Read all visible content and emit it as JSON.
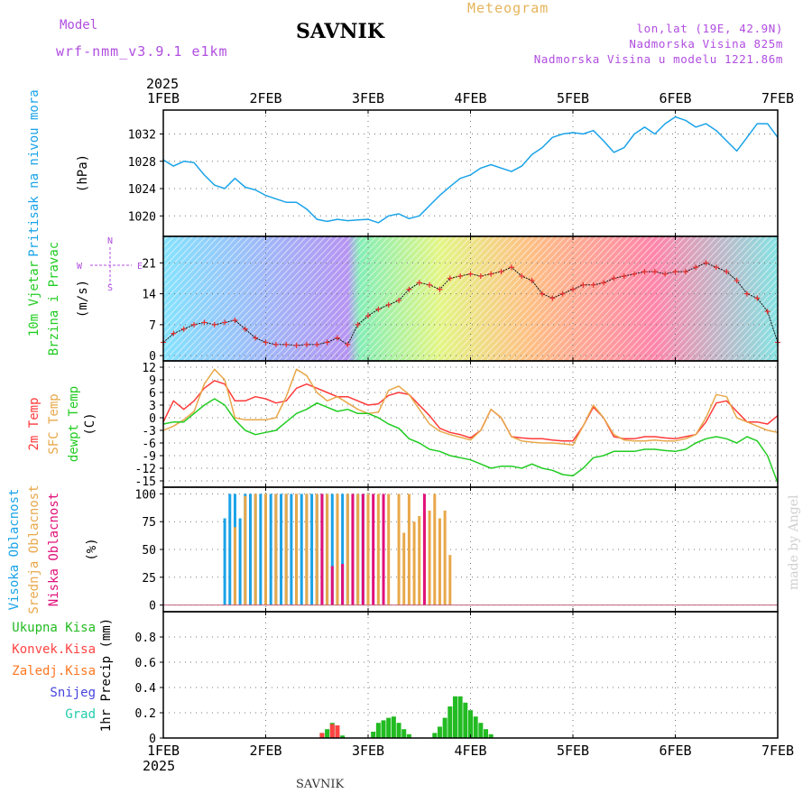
{
  "header": {
    "model_label": "Model",
    "model_version": "wrf-nmm_v3.9.1  e1km",
    "station": "SAVNIK",
    "meteogram_label": "Meteogram",
    "location": "lon,lat (19E, 42.9N)",
    "elevation": "Nadmorska Visina 825m",
    "model_elevation": "Nadmorska Visina u modelu 1221.86m"
  },
  "footer": {
    "station": "SAVNIK"
  },
  "watermark": "made by Angel",
  "colors": {
    "pressure": "#1aa3e8",
    "temp2m": "#ff3a3a",
    "sfc_temp": "#e8a84a",
    "dewpoint": "#22cc22",
    "high_cloud": "#1aa3e8",
    "mid_cloud": "#e8a84a",
    "low_cloud": "#e0107a",
    "total_precip": "#22bb22",
    "conv_precip": "#ff4444",
    "snow": "#4444dd",
    "wind_label": "#22cc22",
    "cloud_label": "#1aa3e8",
    "panel_border": "#000000"
  },
  "chart_data": [
    {
      "type": "line",
      "panel": "pressure",
      "ylabel": [
        "Pritisak na nivou mora",
        "(hPa)"
      ],
      "ylim": [
        1017,
        1035.5
      ],
      "yticks": [
        1020,
        1024,
        1028,
        1032
      ],
      "top_axis_year": "2025",
      "x_ticks": [
        "1FEB",
        "2FEB",
        "3FEB",
        "4FEB",
        "5FEB",
        "6FEB",
        "7FEB"
      ],
      "grid": true,
      "series": [
        {
          "color_key": "pressure",
          "x": [
            0,
            0.1,
            0.2,
            0.3,
            0.4,
            0.5,
            0.6,
            0.7,
            0.8,
            0.9,
            1.0,
            1.1,
            1.2,
            1.3,
            1.4,
            1.5,
            1.6,
            1.7,
            1.8,
            1.9,
            2.0,
            2.1,
            2.2,
            2.3,
            2.4,
            2.5,
            2.6,
            2.7,
            2.8,
            2.9,
            3.0,
            3.1,
            3.2,
            3.3,
            3.4,
            3.5,
            3.6,
            3.7,
            3.8,
            3.9,
            4.0,
            4.1,
            4.2,
            4.3,
            4.4,
            4.5,
            4.6,
            4.7,
            4.8,
            4.9,
            5.0,
            5.1,
            5.2,
            5.3,
            5.4,
            5.5,
            5.6,
            5.7,
            5.8,
            5.9,
            6.0
          ],
          "y": [
            1028.2,
            1027.3,
            1028.0,
            1027.8,
            1026.0,
            1024.5,
            1024.0,
            1025.5,
            1024.2,
            1023.8,
            1023.0,
            1022.5,
            1022.0,
            1022.0,
            1021.0,
            1019.5,
            1019.2,
            1019.5,
            1019.3,
            1019.4,
            1019.5,
            1019.0,
            1020.0,
            1020.3,
            1019.6,
            1020.0,
            1021.5,
            1023.0,
            1024.3,
            1025.5,
            1026.0,
            1027.0,
            1027.5,
            1027.0,
            1026.5,
            1027.3,
            1029.0,
            1030.0,
            1031.5,
            1032.0,
            1032.2,
            1032.0,
            1032.5,
            1031.0,
            1029.3,
            1030.0,
            1032.0,
            1033.0,
            1032.0,
            1033.5,
            1034.5,
            1034.0,
            1033.0,
            1033.5,
            1032.5,
            1031.0,
            1029.5,
            1031.5,
            1033.5,
            1033.5,
            1031.5
          ]
        }
      ]
    },
    {
      "type": "line",
      "panel": "wind",
      "ylabel": [
        "10m Vjetar",
        "Brzina i Pravac",
        "(m/s)"
      ],
      "compass": [
        "N",
        "S",
        "W",
        "E"
      ],
      "ylim": [
        -1.2,
        27
      ],
      "yticks": [
        0,
        7,
        14,
        21
      ],
      "x_ticks": [
        "1FEB",
        "2FEB",
        "3FEB",
        "4FEB",
        "5FEB",
        "6FEB",
        "7FEB"
      ],
      "grid": true,
      "series": [
        {
          "name": "speed",
          "x": [
            0,
            0.1,
            0.2,
            0.3,
            0.4,
            0.5,
            0.6,
            0.7,
            0.8,
            0.9,
            1.0,
            1.1,
            1.2,
            1.3,
            1.4,
            1.5,
            1.6,
            1.7,
            1.8,
            1.9,
            2.0,
            2.1,
            2.2,
            2.3,
            2.4,
            2.5,
            2.6,
            2.7,
            2.8,
            2.9,
            3.0,
            3.1,
            3.2,
            3.3,
            3.4,
            3.5,
            3.6,
            3.7,
            3.8,
            3.9,
            4.0,
            4.1,
            4.2,
            4.3,
            4.4,
            4.5,
            4.6,
            4.7,
            4.8,
            4.9,
            5.0,
            5.1,
            5.2,
            5.3,
            5.4,
            5.5,
            5.6,
            5.7,
            5.8,
            5.9,
            6.0
          ],
          "y": [
            3,
            5,
            6,
            7,
            7.5,
            7,
            7.5,
            8,
            6,
            4,
            3,
            2.5,
            2.5,
            2.3,
            2.5,
            2.5,
            3,
            4,
            2.5,
            7,
            9,
            10.5,
            11.5,
            12.5,
            15,
            16.5,
            16,
            15,
            17.5,
            18,
            18.5,
            18,
            18.5,
            19,
            20,
            18,
            17,
            14,
            13,
            14,
            15,
            16,
            16,
            16.5,
            17.5,
            18,
            18.5,
            19,
            19,
            18.5,
            19,
            19,
            20,
            21,
            20,
            19,
            17,
            14,
            13,
            10,
            3
          ]
        }
      ]
    },
    {
      "type": "line",
      "panel": "temperature",
      "ylabel": [
        "2m Temp",
        "SFC Temp",
        "dewpt Temp",
        "(C)"
      ],
      "ylim": [
        -16.5,
        13.5
      ],
      "yticks": [
        -15,
        -12,
        -9,
        -6,
        -3,
        0,
        3,
        6,
        9,
        12
      ],
      "x_ticks": [
        "1FEB",
        "2FEB",
        "3FEB",
        "4FEB",
        "5FEB",
        "6FEB",
        "7FEB"
      ],
      "grid": true,
      "series": [
        {
          "color_key": "temp2m",
          "x": [
            0,
            0.1,
            0.2,
            0.3,
            0.4,
            0.5,
            0.6,
            0.7,
            0.8,
            0.9,
            1.0,
            1.1,
            1.2,
            1.3,
            1.4,
            1.5,
            1.6,
            1.7,
            1.8,
            1.9,
            2.0,
            2.1,
            2.2,
            2.3,
            2.4,
            2.5,
            2.6,
            2.7,
            2.8,
            2.9,
            3.0,
            3.1,
            3.2,
            3.3,
            3.4,
            3.5,
            3.6,
            3.7,
            3.8,
            3.9,
            4.0,
            4.1,
            4.2,
            4.3,
            4.4,
            4.5,
            4.6,
            4.7,
            4.8,
            4.9,
            5.0,
            5.1,
            5.2,
            5.3,
            5.4,
            5.5,
            5.6,
            5.7,
            5.8,
            5.9,
            6.0
          ],
          "y": [
            -1,
            4,
            2,
            4,
            7,
            8.8,
            8,
            4,
            4,
            5,
            4.5,
            3.5,
            4,
            7,
            8,
            7,
            6,
            5,
            5,
            4,
            3,
            3.3,
            5.3,
            6,
            5.5,
            3,
            0.5,
            -2.5,
            -3.5,
            -4,
            -4.8,
            -3,
            2,
            0,
            -4.5,
            -4.8,
            -5,
            -5,
            -5.3,
            -5.5,
            -5.5,
            -2,
            2.5,
            0,
            -4.5,
            -5,
            -5,
            -4.5,
            -4.5,
            -4.8,
            -5,
            -4.5,
            -4,
            -1,
            3.5,
            4,
            1.5,
            -1,
            -1,
            -1.5,
            0.5
          ]
        },
        {
          "color_key": "sfc_temp",
          "x": [
            0,
            0.1,
            0.2,
            0.3,
            0.4,
            0.5,
            0.6,
            0.7,
            0.8,
            0.9,
            1.0,
            1.1,
            1.2,
            1.3,
            1.4,
            1.5,
            1.6,
            1.7,
            1.8,
            1.9,
            2.0,
            2.1,
            2.2,
            2.3,
            2.4,
            2.5,
            2.6,
            2.7,
            2.8,
            2.9,
            3.0,
            3.1,
            3.2,
            3.3,
            3.4,
            3.5,
            3.6,
            3.7,
            3.8,
            3.9,
            4.0,
            4.1,
            4.2,
            4.3,
            4.4,
            4.5,
            4.6,
            4.7,
            4.8,
            4.9,
            5.0,
            5.1,
            5.2,
            5.3,
            5.4,
            5.5,
            5.6,
            5.7,
            5.8,
            5.9,
            6.0
          ],
          "y": [
            -3,
            -2,
            -0.5,
            1.5,
            8,
            11.5,
            9,
            0,
            -0.5,
            -0.5,
            -0.5,
            0,
            5,
            11.5,
            10,
            6,
            4,
            5,
            3.5,
            2,
            1,
            1.3,
            6.5,
            7.5,
            5.5,
            2,
            -1.5,
            -3.2,
            -4,
            -4.6,
            -5.3,
            -3,
            2,
            0,
            -4.5,
            -5.5,
            -5.8,
            -6,
            -6,
            -6.2,
            -6.5,
            -2,
            3,
            0,
            -4,
            -5.3,
            -5.5,
            -5.5,
            -5.3,
            -5.5,
            -5.5,
            -5,
            -4,
            0,
            5.5,
            5,
            0,
            -1,
            -2,
            -3,
            -3.5
          ]
        },
        {
          "color_key": "dewpoint",
          "x": [
            0,
            0.1,
            0.2,
            0.3,
            0.4,
            0.5,
            0.6,
            0.7,
            0.8,
            0.9,
            1.0,
            1.1,
            1.2,
            1.3,
            1.4,
            1.5,
            1.6,
            1.7,
            1.8,
            1.9,
            2.0,
            2.1,
            2.2,
            2.3,
            2.4,
            2.5,
            2.6,
            2.7,
            2.8,
            2.9,
            3.0,
            3.1,
            3.2,
            3.3,
            3.4,
            3.5,
            3.6,
            3.7,
            3.8,
            3.9,
            4.0,
            4.1,
            4.2,
            4.3,
            4.4,
            4.5,
            4.6,
            4.7,
            4.8,
            4.9,
            5.0,
            5.1,
            5.2,
            5.3,
            5.4,
            5.5,
            5.6,
            5.7,
            5.8,
            5.9,
            6.0
          ],
          "y": [
            -1.5,
            -1,
            -1,
            1,
            3,
            4.5,
            3,
            -0.5,
            -3,
            -4,
            -3.5,
            -3,
            -1,
            1,
            2,
            3.5,
            2.5,
            1.5,
            2,
            1,
            1,
            0,
            -1.5,
            -2.5,
            -5,
            -6,
            -7.5,
            -8,
            -9,
            -9.5,
            -10,
            -11,
            -12,
            -11.5,
            -11.5,
            -12,
            -11,
            -12,
            -12.5,
            -13.5,
            -13.8,
            -12,
            -9.5,
            -9,
            -8,
            -8,
            -8,
            -7.5,
            -7.5,
            -7.8,
            -8,
            -7.5,
            -6,
            -5,
            -4.5,
            -5,
            -6,
            -4.5,
            -5.5,
            -9,
            -15.5
          ]
        }
      ]
    },
    {
      "type": "bar",
      "panel": "cloud_cover",
      "ylabel": [
        "Visoka Oblacnost",
        "Srednja Oblacnost",
        "Niska Oblacnost",
        "(%)"
      ],
      "ylim": [
        -6,
        106
      ],
      "yticks": [
        0,
        25,
        50,
        75,
        100
      ],
      "x_ticks": [
        "1FEB",
        "2FEB",
        "3FEB",
        "4FEB",
        "5FEB",
        "6FEB",
        "7FEB"
      ],
      "grid": true,
      "series": [
        {
          "color_key": "high_cloud",
          "x": [
            0.6,
            0.65,
            0.7,
            0.75,
            0.8,
            0.85,
            0.9,
            0.95,
            1.0,
            1.05,
            1.1,
            1.15,
            1.2,
            1.25,
            1.3,
            1.35,
            1.4,
            1.45,
            1.5,
            1.55,
            1.6,
            1.65,
            1.7,
            1.75,
            1.8,
            1.85,
            1.9,
            1.95,
            2.0
          ],
          "y": [
            78,
            100,
            100,
            78,
            100,
            100,
            100,
            100,
            100,
            100,
            100,
            100,
            100,
            100,
            100,
            100,
            100,
            100,
            100,
            100,
            100,
            100,
            100,
            100,
            100,
            100,
            100,
            100,
            100
          ]
        },
        {
          "color_key": "mid_cloud",
          "x": [
            0.7,
            0.8,
            0.9,
            1.0,
            1.1,
            1.2,
            1.3,
            1.4,
            1.5,
            1.6,
            1.7,
            1.8,
            1.9,
            2.0,
            2.1,
            2.2,
            2.3,
            2.35,
            2.4,
            2.45,
            2.5,
            2.55,
            2.6,
            2.65,
            2.7,
            2.75,
            2.8
          ],
          "y": [
            70,
            98,
            100,
            100,
            100,
            100,
            100,
            100,
            100,
            100,
            100,
            100,
            100,
            100,
            100,
            100,
            100,
            65,
            100,
            75,
            80,
            82,
            85,
            100,
            78,
            85,
            45
          ]
        },
        {
          "color_key": "low_cloud",
          "x": [
            1.55,
            1.65,
            1.75,
            1.85,
            1.95,
            2.05,
            2.15,
            2.55,
            6.6,
            6.7
          ],
          "y": [
            100,
            35,
            37,
            100,
            100,
            100,
            100,
            100,
            6,
            8
          ]
        }
      ]
    },
    {
      "type": "bar",
      "panel": "precipitation",
      "ylabel": [
        "1hr Precip (mm)"
      ],
      "legend": [
        "Ukupna Kisa",
        "Konvek.Kisa",
        "Zaledj.Kisa",
        "Snijeg",
        "Grad"
      ],
      "legend_colors": [
        "#22bb22",
        "#ff4444",
        "#ff7722",
        "#4444dd",
        "#22ccaa"
      ],
      "ylim": [
        0,
        1.0
      ],
      "yticks": [
        0,
        0.2,
        0.4,
        0.6,
        0.8
      ],
      "x_ticks": [
        "1FEB",
        "2FEB",
        "3FEB",
        "4FEB",
        "5FEB",
        "6FEB",
        "7FEB"
      ],
      "bottom_axis_year": "2025",
      "grid": true,
      "series": [
        {
          "name": "Ukupna Kisa",
          "color_key": "total_precip",
          "x": [
            1.55,
            1.6,
            1.65,
            1.7,
            1.75,
            2.05,
            2.1,
            2.15,
            2.2,
            2.25,
            2.3,
            2.35,
            2.4,
            2.65,
            2.7,
            2.75,
            2.8,
            2.85,
            2.9,
            2.95,
            3.0,
            3.05,
            3.1,
            3.15,
            3.2
          ],
          "y": [
            0.04,
            0.07,
            0.12,
            0.1,
            0.02,
            0.05,
            0.12,
            0.14,
            0.16,
            0.17,
            0.12,
            0.07,
            0.03,
            0.04,
            0.09,
            0.16,
            0.25,
            0.33,
            0.33,
            0.28,
            0.22,
            0.17,
            0.12,
            0.07,
            0.03
          ]
        },
        {
          "name": "Konvek.Kisa",
          "color_key": "conv_precip",
          "x": [
            1.55,
            1.65,
            1.7
          ],
          "y": [
            0.04,
            0.11,
            0.1
          ]
        }
      ]
    }
  ]
}
